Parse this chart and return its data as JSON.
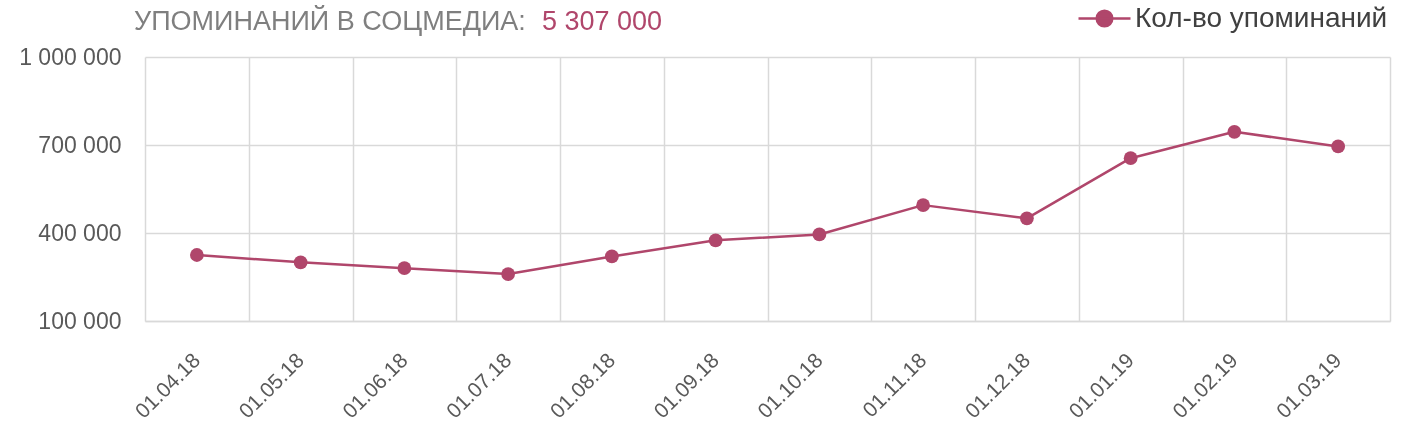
{
  "chart_data": {
    "type": "line",
    "title": "УПОМИНАНИЙ В СОЦМЕДИА:",
    "subtitle": "5 307 000",
    "categories": [
      "01.04.18",
      "01.05.18",
      "01.06.18",
      "01.07.18",
      "01.08.18",
      "01.09.18",
      "01.10.18",
      "01.11.18",
      "01.12.18",
      "01.01.19",
      "01.02.19",
      "01.03.19"
    ],
    "series": [
      {
        "name": "Кол-во упоминаний",
        "color": "#b0466b",
        "values": [
          325000,
          300000,
          280000,
          260000,
          320000,
          375000,
          395000,
          495000,
          450000,
          655000,
          745000,
          695000
        ]
      }
    ],
    "ylim": [
      100000,
      1000000
    ],
    "yticks": [
      {
        "value": 100000,
        "label": "100 000"
      },
      {
        "value": 400000,
        "label": "400 000"
      },
      {
        "value": 700000,
        "label": "700 000"
      },
      {
        "value": 1000000,
        "label": "1 000 000"
      }
    ],
    "grid": true,
    "legend": "top right",
    "marker": "circle",
    "line_style": "solid"
  }
}
